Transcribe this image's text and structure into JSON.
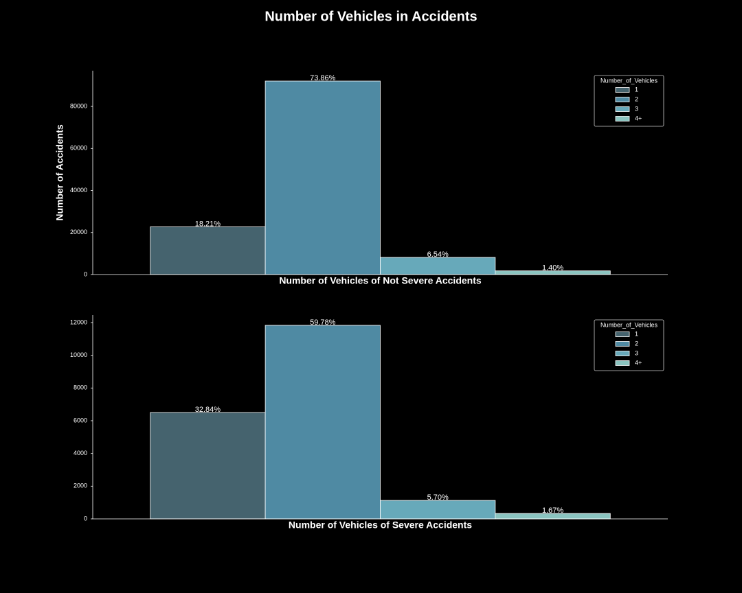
{
  "title": "Number of Vehicles in Accidents",
  "chart_data": [
    {
      "type": "bar",
      "xlabel": "Number of Vehicles of Not Severe Accidents",
      "ylabel": "Number of Accidents",
      "categories": [
        null
      ],
      "series": [
        {
          "name": "1",
          "color": "#45636e",
          "values": [
            22700
          ],
          "value_labels": [
            "18.21%"
          ]
        },
        {
          "name": "2",
          "color": "#4f8aa3",
          "values": [
            92080
          ],
          "value_labels": [
            "73.86%"
          ]
        },
        {
          "name": "3",
          "color": "#67a9ba",
          "values": [
            8150
          ],
          "value_labels": [
            "6.54%"
          ]
        },
        {
          "name": "4+",
          "color": "#8bc4c0",
          "values": [
            1745
          ],
          "value_labels": [
            "1.40%"
          ]
        }
      ],
      "ylim": [
        0,
        97000
      ],
      "yticks": [
        0,
        20000,
        40000,
        60000,
        80000
      ],
      "legend_title": "Number_of_Vehicles",
      "legend": "upper right"
    },
    {
      "type": "bar",
      "xlabel": "Number of Vehicles of Severe Accidents",
      "categories": [
        null
      ],
      "series": [
        {
          "name": "1",
          "color": "#45636e",
          "values": [
            6500
          ],
          "value_labels": [
            "32.84%"
          ]
        },
        {
          "name": "2",
          "color": "#4f8aa3",
          "values": [
            11830
          ],
          "value_labels": [
            "59.78%"
          ]
        },
        {
          "name": "3",
          "color": "#67a9ba",
          "values": [
            1128
          ],
          "value_labels": [
            "5.70%"
          ]
        },
        {
          "name": "4+",
          "color": "#8bc4c0",
          "values": [
            330
          ],
          "value_labels": [
            "1.67%"
          ]
        }
      ],
      "ylim": [
        0,
        12460
      ],
      "yticks": [
        0,
        2000,
        4000,
        6000,
        8000,
        10000,
        12000
      ],
      "legend_title": "Number_of_Vehicles",
      "legend": "upper right"
    }
  ]
}
